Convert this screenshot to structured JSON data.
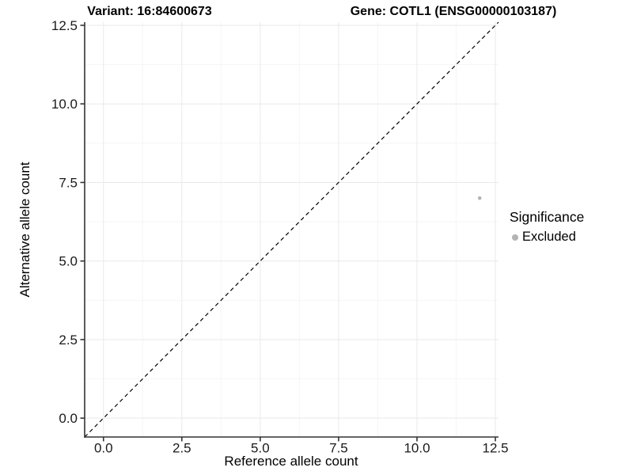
{
  "chart_data": {
    "type": "scatter",
    "titles": {
      "left": "Variant: 16:84600673",
      "right": "Gene: COTL1 (ENSG00000103187)"
    },
    "xlabel": "Reference allele count",
    "ylabel": "Alternative allele count",
    "axis_range": [
      -0.6,
      12.6
    ],
    "major_ticks": [
      0.0,
      2.5,
      5.0,
      7.5,
      10.0,
      12.5
    ],
    "tick_labels": [
      "0.0",
      "2.5",
      "5.0",
      "7.5",
      "10.0",
      "12.5"
    ],
    "minor_gridlines": [
      1.25,
      3.75,
      6.25,
      8.75,
      11.25
    ],
    "grid": true,
    "identity_line": {
      "style": "dashed",
      "slope": 1,
      "intercept": 0,
      "color": "#000000"
    },
    "series": [
      {
        "name": "Excluded",
        "color": "#b3b3b3",
        "points": [
          {
            "x": 12,
            "y": 7
          }
        ]
      }
    ],
    "legend": {
      "title": "Significance",
      "position": "right",
      "items": [
        {
          "label": "Excluded",
          "color": "#b3b3b3"
        }
      ]
    }
  },
  "colors": {
    "background": "#ffffff",
    "axis_line": "#333333",
    "tick_text": "#1a1a1a",
    "grid_major": "#e9e9e9",
    "grid_minor": "#f5f5f5"
  }
}
